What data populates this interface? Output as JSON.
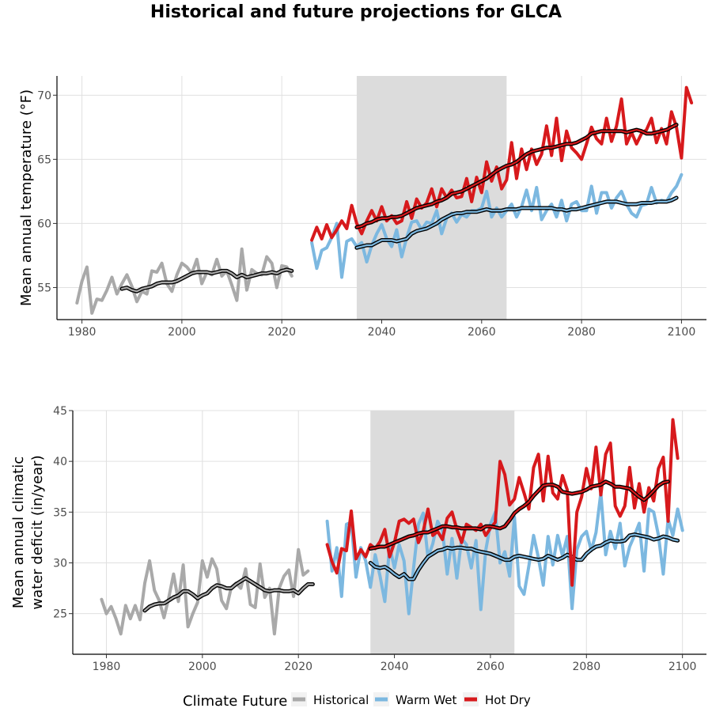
{
  "title": "Historical and future projections for GLCA",
  "legend": {
    "title": "Climate Future",
    "entries": [
      {
        "label": "Historical",
        "color": "#a9a9a9"
      },
      {
        "label": "Warm Wet",
        "color": "#7cb8e0"
      },
      {
        "label": "Hot Dry",
        "color": "#d7191c"
      }
    ]
  },
  "colors": {
    "shade": "#dcdcdc",
    "grid": "#e0e0e0",
    "smooth": "#000000"
  },
  "chart_data": [
    {
      "type": "line",
      "ylabel": "Mean annual temperature (°F)",
      "xlabel": "",
      "xlim": [
        1975,
        2105
      ],
      "ylim": [
        52.5,
        71.5
      ],
      "xticks": [
        1980,
        2000,
        2020,
        2040,
        2060,
        2080,
        2100
      ],
      "yticks": [
        55,
        60,
        65,
        70
      ],
      "shaded_period": [
        2035,
        2065
      ],
      "series": [
        {
          "name": "Historical",
          "x_start": 1979,
          "values": [
            53.8,
            55.5,
            56.6,
            53.0,
            54.1,
            54.0,
            54.8,
            55.8,
            54.5,
            55.3,
            56.0,
            55.1,
            53.9,
            54.7,
            54.5,
            56.3,
            56.2,
            56.9,
            55.3,
            54.7,
            56.0,
            56.9,
            56.6,
            56.1,
            57.2,
            55.3,
            56.2,
            56.0,
            57.2,
            55.9,
            56.3,
            55.2,
            54.0,
            58.0,
            54.8,
            56.4,
            56.1,
            56.0,
            57.4,
            56.9,
            55.0,
            56.7,
            56.6,
            55.9
          ]
        },
        {
          "name": "Historical smoothed",
          "x_start": 1988,
          "values": [
            54.9,
            55.0,
            54.8,
            54.7,
            54.9,
            55.0,
            55.1,
            55.3,
            55.4,
            55.4,
            55.4,
            55.5,
            55.7,
            55.9,
            56.1,
            56.2,
            56.2,
            56.2,
            56.1,
            56.2,
            56.3,
            56.3,
            56.1,
            55.8,
            56.0,
            55.8,
            55.9,
            56.0,
            56.1,
            56.1,
            56.2,
            56.1,
            56.3,
            56.4,
            56.3
          ]
        },
        {
          "name": "Warm Wet",
          "x_start": 2026,
          "values": [
            58.5,
            56.5,
            57.9,
            58.1,
            58.9,
            60.0,
            55.8,
            58.6,
            58.8,
            58.2,
            58.5,
            57.0,
            58.3,
            59.2,
            59.9,
            58.8,
            58.2,
            59.5,
            57.4,
            58.9,
            60.1,
            60.2,
            59.5,
            60.1,
            60.0,
            61.0,
            59.2,
            60.4,
            60.8,
            60.1,
            60.7,
            60.5,
            61.0,
            61.0,
            61.2,
            62.5,
            60.5,
            61.2,
            60.5,
            61.0,
            61.5,
            60.5,
            61.3,
            62.6,
            61.0,
            62.8,
            60.3,
            61.0,
            61.5,
            60.5,
            61.8,
            60.2,
            61.5,
            61.7,
            61.0,
            61.0,
            62.9,
            60.8,
            62.4,
            62.4,
            61.2,
            62.0,
            62.5,
            61.5,
            60.8,
            60.5,
            61.4,
            61.5,
            62.8,
            61.6,
            61.8,
            61.7,
            62.4,
            62.9,
            63.8
          ]
        },
        {
          "name": "Warm Wet smoothed",
          "x_start": 2035,
          "values": [
            58.1,
            58.2,
            58.3,
            58.3,
            58.5,
            58.7,
            58.7,
            58.7,
            58.6,
            58.7,
            58.8,
            59.2,
            59.4,
            59.5,
            59.6,
            59.8,
            60.0,
            60.3,
            60.5,
            60.7,
            60.8,
            60.8,
            60.9,
            60.9,
            60.9,
            61.0,
            61.1,
            61.0,
            61.0,
            61.0,
            61.1,
            61.1,
            61.1,
            61.2,
            61.2,
            61.2,
            61.2,
            61.2,
            61.2,
            61.2,
            61.1,
            61.1,
            61.0,
            61.1,
            61.1,
            61.2,
            61.3,
            61.4,
            61.5,
            61.6,
            61.7,
            61.7,
            61.7,
            61.6,
            61.5,
            61.5,
            61.5,
            61.6,
            61.6,
            61.6,
            61.7,
            61.7,
            61.7,
            61.8,
            62.0
          ]
        },
        {
          "name": "Hot Dry",
          "x_start": 2026,
          "values": [
            58.7,
            59.7,
            58.8,
            59.9,
            58.9,
            59.5,
            60.2,
            59.6,
            61.4,
            60.0,
            59.2,
            60.2,
            61.0,
            60.2,
            61.3,
            60.2,
            60.6,
            60.0,
            60.2,
            61.7,
            60.4,
            61.9,
            61.2,
            61.6,
            62.7,
            61.3,
            62.7,
            62.0,
            62.6,
            62.0,
            62.1,
            63.5,
            61.7,
            63.6,
            62.4,
            64.8,
            63.3,
            64.4,
            62.7,
            63.4,
            66.3,
            63.5,
            65.8,
            64.2,
            65.8,
            64.6,
            65.4,
            67.6,
            65.3,
            68.2,
            64.9,
            67.2,
            65.9,
            65.5,
            65.0,
            66.2,
            67.5,
            66.6,
            66.2,
            68.2,
            66.4,
            67.6,
            69.7,
            66.2,
            67.1,
            66.2,
            67.0,
            67.3,
            68.2,
            66.3,
            67.4,
            66.2,
            68.7,
            67.5,
            65.1,
            70.6,
            69.4
          ]
        },
        {
          "name": "Hot Dry smoothed",
          "x_start": 2035,
          "values": [
            59.7,
            59.8,
            60.0,
            60.1,
            60.3,
            60.4,
            60.4,
            60.5,
            60.5,
            60.6,
            60.8,
            61.0,
            61.2,
            61.3,
            61.4,
            61.5,
            61.7,
            61.8,
            62.0,
            62.3,
            62.4,
            62.5,
            62.7,
            62.9,
            63.1,
            63.3,
            63.5,
            63.8,
            64.1,
            64.3,
            64.5,
            64.6,
            64.8,
            65.1,
            65.4,
            65.6,
            65.7,
            65.8,
            65.9,
            65.9,
            66.0,
            66.1,
            66.2,
            66.2,
            66.3,
            66.5,
            66.7,
            67.0,
            67.1,
            67.2,
            67.2,
            67.2,
            67.2,
            67.2,
            67.1,
            67.2,
            67.3,
            67.2,
            67.0,
            67.0,
            67.1,
            67.2,
            67.3,
            67.5,
            67.7
          ]
        }
      ]
    },
    {
      "type": "line",
      "ylabel": "Mean annual climatic water deficit (in/year)",
      "xlabel": "",
      "xlim": [
        1973,
        2105
      ],
      "ylim": [
        21.0,
        45.0
      ],
      "xticks": [
        1980,
        2000,
        2020,
        2040,
        2060,
        2080,
        2100
      ],
      "yticks": [
        25,
        30,
        35,
        40,
        45
      ],
      "shaded_period": [
        2035,
        2065
      ],
      "series": [
        {
          "name": "Historical",
          "x_start": 1979,
          "values": [
            26.4,
            25.0,
            25.7,
            24.5,
            23.0,
            25.8,
            24.5,
            25.8,
            24.4,
            28.0,
            30.2,
            27.3,
            26.3,
            24.6,
            26.6,
            28.9,
            26.2,
            29.8,
            23.7,
            25.0,
            26.1,
            30.2,
            28.6,
            30.4,
            29.4,
            26.3,
            25.5,
            27.6,
            28.0,
            27.5,
            29.4,
            25.9,
            25.6,
            29.9,
            26.6,
            27.5,
            23.0,
            27.5,
            28.7,
            29.3,
            26.7,
            31.3,
            28.8,
            29.2
          ]
        },
        {
          "name": "Historical smoothed",
          "x_start": 1988,
          "values": [
            25.3,
            25.7,
            25.9,
            26.0,
            26.0,
            26.3,
            26.6,
            26.8,
            27.2,
            27.2,
            26.9,
            26.5,
            26.8,
            27.0,
            27.5,
            27.8,
            27.7,
            27.5,
            27.5,
            27.9,
            28.2,
            28.5,
            28.2,
            27.9,
            27.6,
            27.3,
            27.2,
            27.3,
            27.3,
            27.2,
            27.2,
            27.3,
            27.0,
            27.5,
            27.9,
            27.9
          ]
        },
        {
          "name": "Warm Wet",
          "x_start": 2026,
          "values": [
            34.1,
            29.2,
            31.5,
            26.7,
            33.8,
            34.0,
            28.6,
            31.5,
            30.2,
            27.6,
            30.8,
            28.7,
            26.2,
            31.6,
            29.5,
            31.8,
            30.2,
            25.0,
            29.5,
            33.8,
            34.9,
            30.5,
            31.9,
            34.1,
            33.2,
            28.9,
            32.4,
            28.5,
            32.4,
            31.8,
            29.5,
            32.2,
            25.4,
            31.2,
            33.8,
            35.0,
            30.0,
            31.1,
            28.7,
            34.5,
            27.7,
            26.9,
            29.7,
            32.7,
            30.5,
            27.8,
            32.6,
            29.8,
            32.7,
            30.7,
            32.6,
            25.5,
            31.3,
            32.6,
            33.1,
            31.2,
            33.0,
            36.9,
            30.8,
            33.1,
            31.4,
            33.9,
            29.7,
            31.6,
            32.7,
            33.9,
            29.2,
            35.3,
            35.0,
            32.7,
            28.9,
            34.3,
            32.7,
            35.3,
            33.2
          ]
        },
        {
          "name": "Warm Wet smoothed",
          "x_start": 2035,
          "values": [
            30.0,
            29.6,
            29.5,
            29.6,
            29.3,
            28.9,
            28.6,
            28.9,
            28.4,
            28.4,
            29.3,
            30.0,
            30.6,
            30.9,
            31.2,
            31.3,
            31.5,
            31.4,
            31.5,
            31.5,
            31.4,
            31.4,
            31.2,
            31.1,
            31.0,
            30.9,
            30.7,
            30.5,
            30.3,
            30.3,
            30.6,
            30.7,
            30.6,
            30.5,
            30.4,
            30.3,
            30.4,
            30.7,
            30.5,
            30.3,
            30.5,
            30.8,
            30.6,
            30.3,
            30.3,
            30.9,
            31.3,
            31.6,
            31.7,
            32.0,
            32.2,
            32.1,
            32.1,
            32.2,
            32.7,
            32.8,
            32.7,
            32.6,
            32.5,
            32.3,
            32.4,
            32.6,
            32.5,
            32.3,
            32.2
          ]
        },
        {
          "name": "Hot Dry",
          "x_start": 2026,
          "values": [
            31.8,
            30.1,
            29.0,
            31.4,
            31.2,
            35.1,
            30.4,
            31.3,
            30.6,
            31.8,
            31.4,
            32.1,
            33.3,
            30.6,
            32.0,
            34.1,
            34.3,
            33.9,
            34.3,
            32.0,
            33.1,
            35.3,
            32.7,
            33.1,
            32.3,
            34.4,
            35.0,
            33.3,
            32.0,
            33.8,
            33.5,
            33.2,
            33.8,
            32.7,
            33.4,
            34.0,
            40.0,
            38.7,
            35.7,
            36.3,
            38.4,
            36.9,
            35.3,
            39.4,
            40.7,
            36.1,
            40.5,
            36.9,
            36.3,
            38.6,
            37.2,
            27.8,
            35.0,
            36.5,
            39.3,
            37.3,
            41.4,
            36.7,
            40.7,
            41.8,
            35.6,
            34.6,
            35.6,
            39.4,
            35.4,
            37.8,
            35.0,
            37.4,
            36.1,
            39.3,
            40.4,
            34.1,
            44.1,
            40.3
          ]
        },
        {
          "name": "Hot Dry smoothed",
          "x_start": 2035,
          "values": [
            31.4,
            31.5,
            31.6,
            31.6,
            31.8,
            32.0,
            32.2,
            32.4,
            32.6,
            32.7,
            32.9,
            33.0,
            33.0,
            33.2,
            33.4,
            33.6,
            33.6,
            33.5,
            33.5,
            33.4,
            33.4,
            33.4,
            33.4,
            33.3,
            33.6,
            33.6,
            33.5,
            33.4,
            33.6,
            34.2,
            34.9,
            35.3,
            35.6,
            36.0,
            36.6,
            37.1,
            37.6,
            37.7,
            37.7,
            37.5,
            37.0,
            36.9,
            36.8,
            36.9,
            37.0,
            37.2,
            37.5,
            37.6,
            37.7,
            38.0,
            37.8,
            37.5,
            37.5,
            37.4,
            37.3,
            36.9,
            36.5,
            36.2,
            36.6,
            37.1,
            37.6,
            37.9,
            38.0
          ]
        }
      ]
    }
  ]
}
